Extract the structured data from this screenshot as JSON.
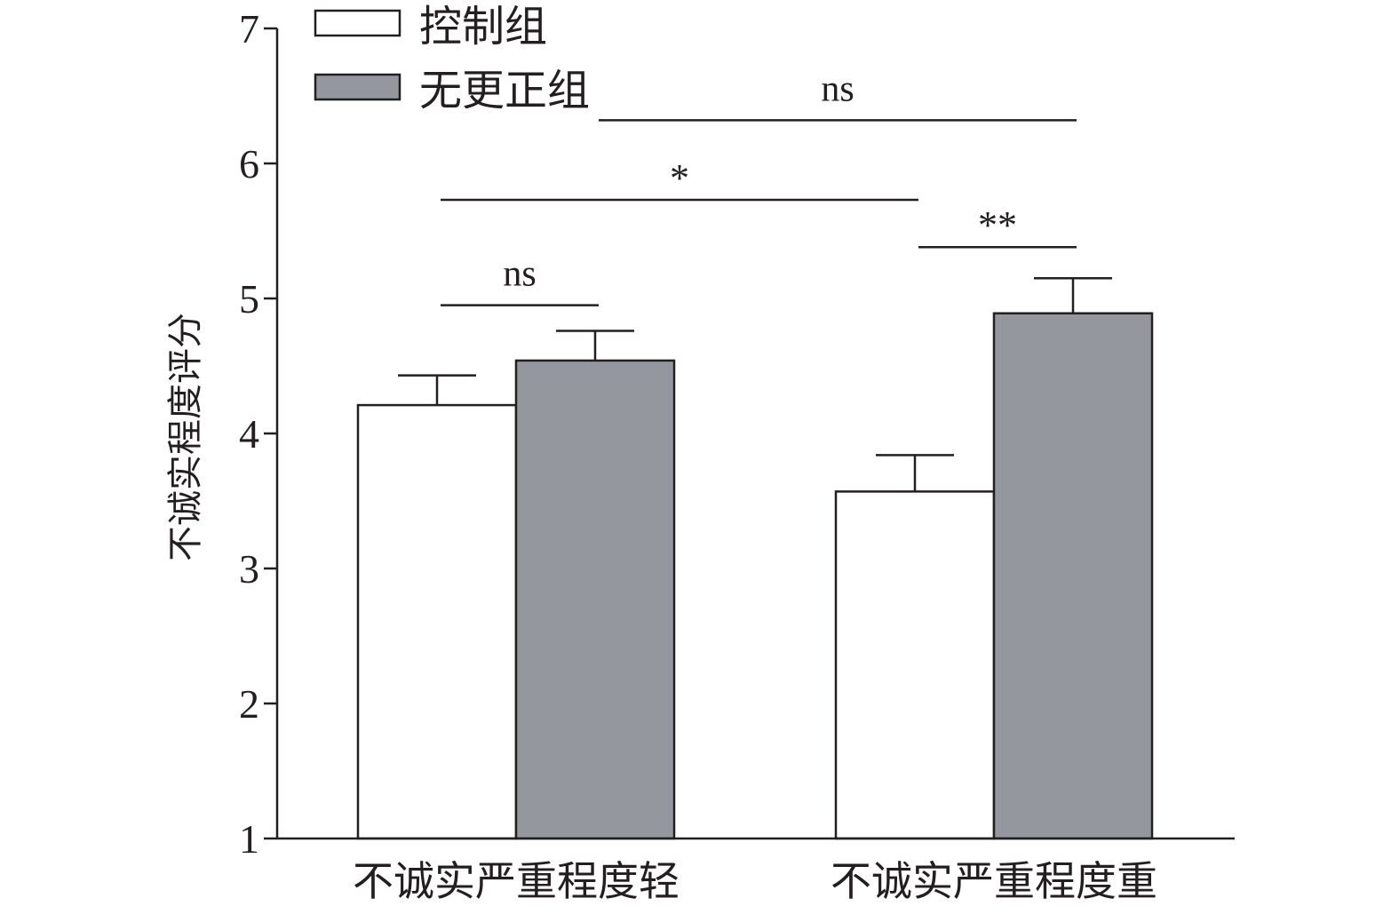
{
  "chart_data": {
    "type": "bar",
    "ylabel": "不诚实程度评分",
    "xlabel": "",
    "ylim": [
      1,
      7
    ],
    "yticks": [
      "1",
      "2",
      "3",
      "4",
      "5",
      "6",
      "7"
    ],
    "categories": [
      "不诚实严重程度轻",
      "不诚实严重程度重"
    ],
    "series": [
      {
        "name": "控制组",
        "values": [
          4.21,
          3.57
        ],
        "errors": [
          0.22,
          0.27
        ],
        "color": "#ffffff"
      },
      {
        "name": "无更正组",
        "values": [
          4.54,
          4.89
        ],
        "errors": [
          0.22,
          0.26
        ],
        "color": "#94979d"
      }
    ],
    "legend_position": "top-left",
    "grid": false,
    "significance": [
      {
        "label": "ns",
        "y": 4.95,
        "bars": [
          "0-0",
          "0-1"
        ]
      },
      {
        "label": "*",
        "y": 5.73,
        "bars": [
          "0-0",
          "1-0"
        ]
      },
      {
        "label": "ns",
        "y": 6.32,
        "bars": [
          "0-1",
          "1-1"
        ]
      },
      {
        "label": "**",
        "y": 5.38,
        "bars": [
          "1-0",
          "1-1"
        ]
      }
    ],
    "colors": {
      "axis": "#231f20",
      "control": "#ffffff",
      "nocorrection": "#94979d"
    }
  }
}
